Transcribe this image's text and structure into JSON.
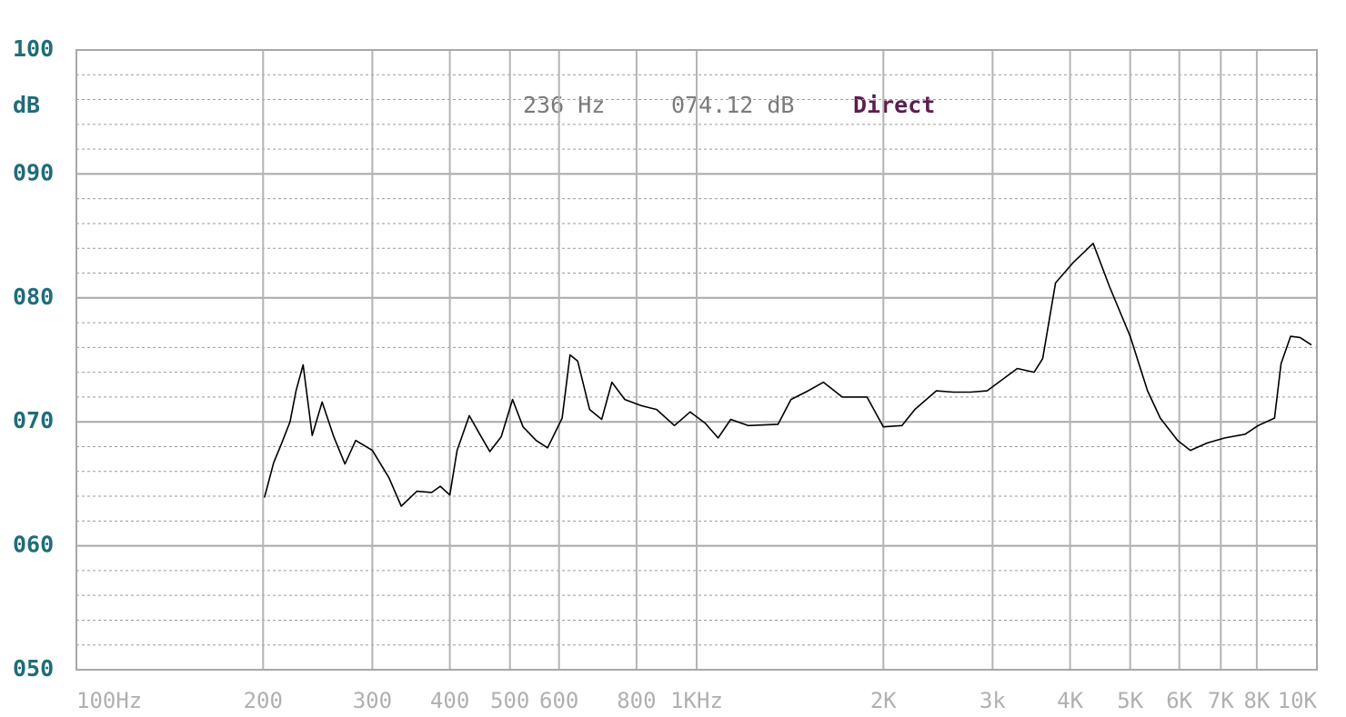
{
  "chart_data": {
    "type": "line",
    "y_label": "dB",
    "annotations": [
      "236 Hz",
      "074.12 dB",
      "Direct"
    ],
    "x": [
      201,
      208,
      214,
      221,
      226,
      232,
      240,
      249,
      260,
      271,
      282,
      300,
      319,
      334,
      354,
      374,
      386,
      400,
      411,
      430,
      447,
      464,
      484,
      505,
      525,
      551,
      575,
      607,
      625,
      643,
      672,
      703,
      730,
      766,
      815,
      862,
      921,
      976,
      1032,
      1083,
      1135,
      1210,
      1353,
      1419,
      1512,
      1601,
      1717,
      1882,
      2000,
      2143,
      2248,
      2434,
      2592,
      2764,
      2939,
      3289,
      3501,
      3613,
      3789,
      4038,
      4358,
      4631,
      5000,
      5333,
      5592,
      5964,
      6253,
      6659,
      7109,
      7662,
      8040,
      8543,
      8753,
      9071,
      9396,
      9799
    ],
    "values": [
      63.9,
      66.7,
      68.2,
      70.0,
      72.5,
      74.6,
      68.9,
      71.6,
      68.8,
      66.6,
      68.5,
      67.7,
      65.5,
      63.2,
      64.4,
      64.3,
      64.8,
      64.1,
      67.7,
      70.5,
      69.0,
      67.6,
      68.8,
      71.8,
      69.6,
      68.5,
      67.9,
      70.3,
      75.4,
      74.9,
      71.0,
      70.2,
      73.2,
      71.8,
      71.3,
      71.0,
      69.7,
      70.8,
      69.9,
      68.7,
      70.2,
      69.7,
      69.8,
      71.8,
      72.5,
      73.2,
      72.0,
      72.0,
      69.6,
      69.7,
      71.0,
      72.5,
      72.4,
      72.4,
      72.5,
      74.3,
      74.0,
      75.1,
      81.2,
      82.8,
      84.4,
      80.9,
      76.9,
      72.5,
      70.3,
      68.5,
      67.7,
      68.3,
      68.7,
      69.0,
      69.7,
      70.3,
      74.7,
      76.9,
      76.8,
      76.2
    ],
    "color": "#000000",
    "xscale": "log",
    "xlim": [
      100,
      10000
    ],
    "xticks": [
      {
        "value": 100,
        "label": "100Hz"
      },
      200,
      300,
      400,
      500,
      600,
      800,
      {
        "value": 1000,
        "label": "1KHz"
      },
      {
        "value": 2000,
        "label": "2K"
      },
      {
        "value": 3000,
        "label": "3k"
      },
      {
        "value": 4000,
        "label": "4K"
      },
      {
        "value": 5000,
        "label": "5K"
      },
      {
        "value": 6000,
        "label": "6K"
      },
      {
        "value": 7000,
        "label": "7K"
      },
      {
        "value": 8000,
        "label": "8K"
      },
      {
        "value": 10000,
        "label": "10K"
      }
    ],
    "ylim": [
      50,
      100
    ],
    "yticks": [
      {
        "value": 50,
        "label": "050"
      },
      {
        "value": 60,
        "label": "060"
      },
      {
        "value": 70,
        "label": "070"
      },
      {
        "value": 80,
        "label": "080"
      },
      {
        "value": 90,
        "label": "090"
      },
      100
    ],
    "minor_yticks": [
      52,
      54,
      56,
      58,
      62,
      64,
      66,
      68,
      72,
      74,
      76,
      78,
      82,
      84,
      86,
      88,
      92,
      94,
      96,
      98
    ],
    "grid": true
  }
}
